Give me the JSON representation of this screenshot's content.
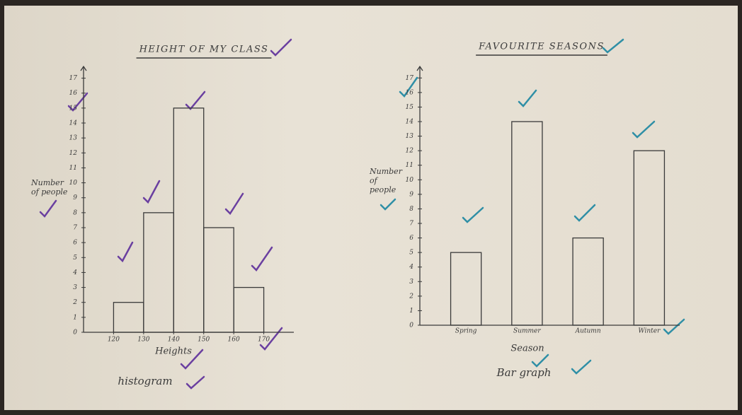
{
  "chart_data": [
    {
      "type": "histogram",
      "title": "HEIGHT OF MY CLASS",
      "x_label": "Heights",
      "y_label": "Number of people",
      "annotation": "histogram",
      "bins": [
        120,
        130,
        140,
        150,
        160,
        170
      ],
      "values": [
        2,
        8,
        15,
        7,
        3
      ],
      "color": "#3a3a3a",
      "check_color": "#6a3fa0",
      "xlim": [
        110,
        180
      ],
      "xticks": [
        120,
        130,
        140,
        150,
        160,
        170
      ],
      "ylim": [
        0,
        17.5
      ],
      "yticks": [
        0,
        1,
        2,
        3,
        4,
        5,
        6,
        7,
        8,
        9,
        10,
        11,
        12,
        13,
        14,
        15,
        16,
        17
      ]
    },
    {
      "type": "bar",
      "title": "FAVOURITE SEASONS",
      "x_label": "Season",
      "y_label": "Number of people",
      "annotation": "Bar graph",
      "categories": [
        "Spring",
        "Summer",
        "Autumn",
        "Winter"
      ],
      "values": [
        5,
        14,
        6,
        12
      ],
      "color": "#3a3a3a",
      "check_color": "#2f8fa6",
      "ylim": [
        0,
        17.5
      ],
      "yticks": [
        0,
        1,
        2,
        3,
        4,
        5,
        6,
        7,
        8,
        9,
        10,
        11,
        12,
        13,
        14,
        15,
        16,
        17
      ]
    }
  ]
}
